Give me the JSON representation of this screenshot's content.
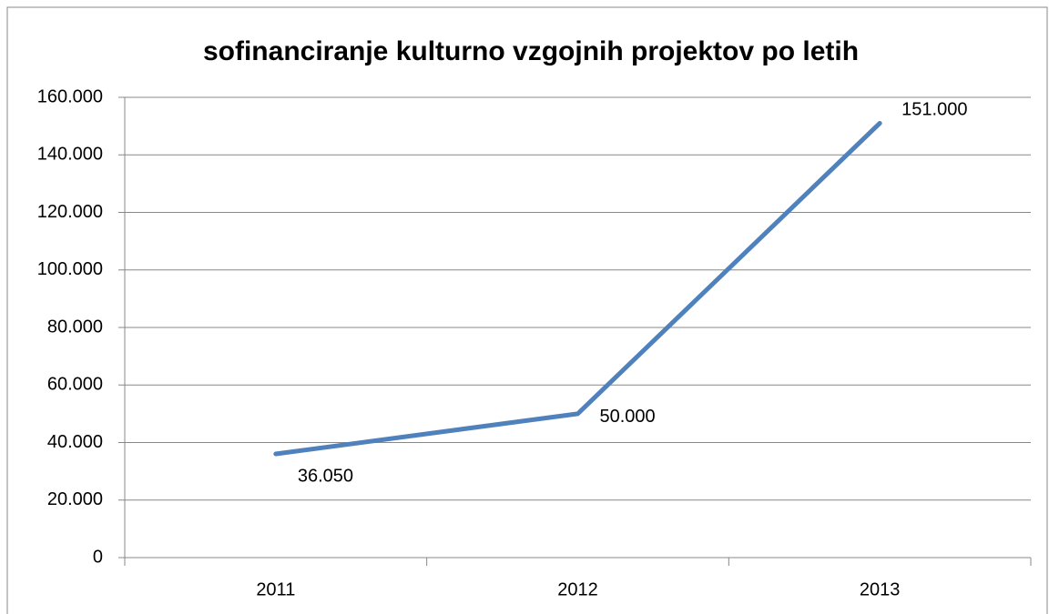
{
  "chart_data": {
    "type": "line",
    "title": "sofinanciranje kulturno vzgojnih projektov po letih",
    "categories": [
      "2011",
      "2012",
      "2013"
    ],
    "series": [
      {
        "name": null,
        "color": "#4f81bd",
        "values": [
          36050,
          50000,
          151000
        ],
        "value_labels": [
          "36.050",
          "50.000",
          "151.000"
        ]
      }
    ],
    "ylim": [
      0,
      160000
    ],
    "yticks": [
      0,
      {
        "value": 20000,
        "label": "20.000"
      },
      {
        "value": 40000,
        "label": "40.000"
      },
      {
        "value": 60000,
        "label": "60.000"
      },
      {
        "value": 80000,
        "label": "80.000"
      },
      {
        "value": 100000,
        "label": "100.000"
      },
      {
        "value": 120000,
        "label": "120.000"
      },
      {
        "value": 140000,
        "label": "140.000"
      },
      {
        "value": 160000,
        "label": "160.000"
      }
    ],
    "grid": true
  }
}
